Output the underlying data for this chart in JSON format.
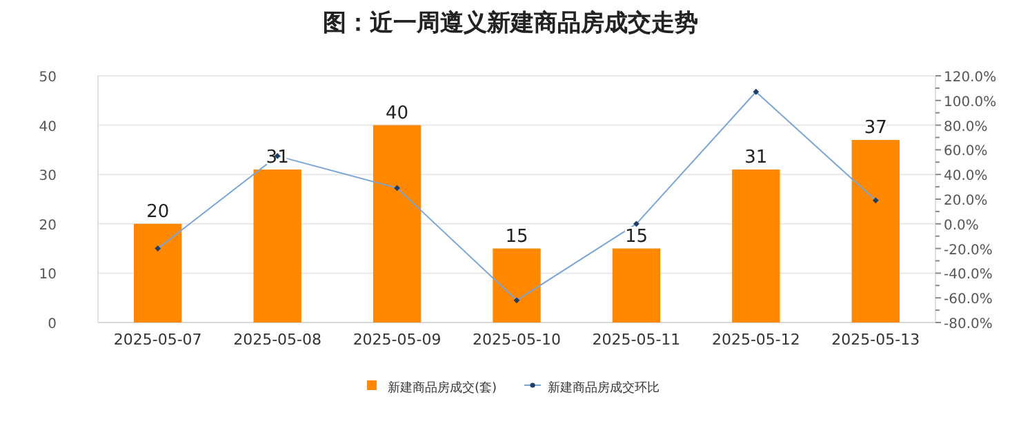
{
  "chart_data": {
    "type": "bar",
    "title": "图：近一周遵义新建商品房成交走势",
    "categories": [
      "2025-05-07",
      "2025-05-08",
      "2025-05-09",
      "2025-05-10",
      "2025-05-11",
      "2025-05-12",
      "2025-05-13"
    ],
    "series": [
      {
        "name": "新建商品房成交(套)",
        "color": "#ff8800",
        "values": [
          20,
          31,
          40,
          15,
          15,
          31,
          37
        ],
        "data_labels": true
      },
      {
        "name": "新建商品房成交环比",
        "type": "line",
        "axis": "y2",
        "color": "#7aa6d6",
        "marker": "diamond",
        "values": [
          -20,
          55,
          29,
          -62,
          0,
          107,
          19
        ]
      }
    ],
    "ylim": [
      0,
      50
    ],
    "yticks": [
      0,
      10,
      20,
      30,
      40,
      50
    ],
    "y2lim": [
      -80,
      120
    ],
    "y2ticks": [
      {
        "value": -80,
        "label": "-80.0%"
      },
      {
        "value": -60,
        "label": "-60.0%"
      },
      {
        "value": -40,
        "label": "-40.0%"
      },
      {
        "value": -20,
        "label": "-20.0%"
      },
      {
        "value": 0,
        "label": "0.0%"
      },
      {
        "value": 20,
        "label": "20.0%"
      },
      {
        "value": 40,
        "label": "40.0%"
      },
      {
        "value": 60,
        "label": "60.0%"
      },
      {
        "value": 80,
        "label": "80.0%"
      },
      {
        "value": 100,
        "label": "100.0%"
      },
      {
        "value": 120,
        "label": "120.0%"
      }
    ],
    "grid": "y",
    "legend": "bottom"
  }
}
